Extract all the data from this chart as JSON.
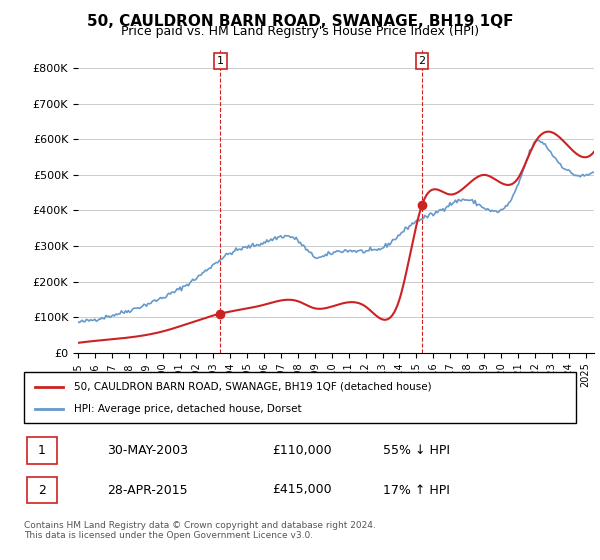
{
  "title": "50, CAULDRON BARN ROAD, SWANAGE, BH19 1QF",
  "subtitle": "Price paid vs. HM Land Registry's House Price Index (HPI)",
  "ylabel": "",
  "ylim": [
    0,
    850000
  ],
  "yticks": [
    0,
    100000,
    200000,
    300000,
    400000,
    500000,
    600000,
    700000,
    800000
  ],
  "ytick_labels": [
    "£0",
    "£100K",
    "£200K",
    "£300K",
    "£400K",
    "£500K",
    "£600K",
    "£700K",
    "£800K"
  ],
  "xlim_start": 1995.0,
  "xlim_end": 2025.5,
  "hpi_color": "#6699cc",
  "price_color": "#cc2222",
  "marker1_x": 2003.41,
  "marker1_y": 110000,
  "marker2_x": 2015.33,
  "marker2_y": 415000,
  "legend_line1": "50, CAULDRON BARN ROAD, SWANAGE, BH19 1QF (detached house)",
  "legend_line2": "HPI: Average price, detached house, Dorset",
  "table_row1_num": "1",
  "table_row1_date": "30-MAY-2003",
  "table_row1_price": "£110,000",
  "table_row1_hpi": "55% ↓ HPI",
  "table_row2_num": "2",
  "table_row2_date": "28-APR-2015",
  "table_row2_price": "£415,000",
  "table_row2_hpi": "17% ↑ HPI",
  "footnote": "Contains HM Land Registry data © Crown copyright and database right 2024.\nThis data is licensed under the Open Government Licence v3.0.",
  "background_color": "#ffffff",
  "grid_color": "#cccccc"
}
